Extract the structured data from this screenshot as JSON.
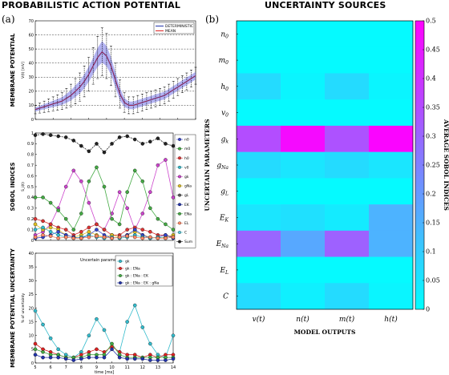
{
  "titles": {
    "left": "PROBABILISTIC ACTION POTENTIAL",
    "right": "UNCERTAINTY SOURCES",
    "panel_a": "(a)",
    "panel_b": "(b)"
  },
  "chart_data": [
    {
      "id": "membrane",
      "type": "line",
      "ylabel": "MEMBRANE POTENTIAL",
      "ylabel_small": "V(t) [mV]",
      "ylim": [
        0,
        70
      ],
      "yticks": [
        0,
        10,
        20,
        30,
        40,
        50,
        60,
        70
      ],
      "xlim": [
        5,
        14
      ],
      "grid": true,
      "legend": [
        "DETERMINISTIC",
        "MEAN"
      ],
      "x": [
        5,
        5.25,
        5.5,
        5.75,
        6,
        6.25,
        6.5,
        6.75,
        7,
        7.25,
        7.5,
        7.75,
        8,
        8.25,
        8.5,
        8.75,
        9,
        9.25,
        9.5,
        9.75,
        10,
        10.25,
        10.5,
        10.75,
        11,
        11.25,
        11.5,
        11.75,
        12,
        12.25,
        12.5,
        12.75,
        13,
        13.25,
        13.5,
        13.75,
        14
      ],
      "mean": [
        7,
        8,
        9,
        10,
        11,
        12,
        13,
        15,
        17,
        20,
        23,
        27,
        32,
        38,
        44,
        48,
        45,
        38,
        28,
        18,
        12,
        10,
        10,
        11,
        12,
        13,
        14,
        15,
        16,
        17,
        19,
        21,
        23,
        25,
        27,
        29,
        31
      ],
      "err": [
        3,
        3.5,
        4,
        4.5,
        5,
        5.5,
        6,
        7,
        8,
        9,
        10,
        11,
        12,
        13,
        15,
        17,
        16,
        14,
        12,
        10,
        7,
        6,
        6,
        6,
        6,
        6,
        6,
        6,
        6,
        6,
        6,
        6,
        6,
        6,
        6,
        6,
        6
      ]
    },
    {
      "id": "sobol",
      "type": "line",
      "ylabel": "SOBOL INDICES",
      "ylabel_small": "S_i(t)",
      "ylim": [
        0,
        1
      ],
      "yticks": [
        0,
        0.1,
        0.2,
        0.3,
        0.4,
        0.5,
        0.6,
        0.7,
        0.8,
        0.9,
        1
      ],
      "xlim": [
        5,
        14
      ],
      "x": [
        5,
        5.5,
        6,
        6.5,
        7,
        7.5,
        8,
        8.5,
        9,
        9.5,
        10,
        10.5,
        11,
        11.5,
        12,
        12.5,
        13,
        13.5,
        14
      ],
      "legend": [
        "n0",
        "m0",
        "h0",
        "v0",
        "gk",
        "gNa",
        "gL",
        "EK",
        "ENa",
        "EL",
        "C",
        "Sum"
      ],
      "series": [
        {
          "name": "gk",
          "color": "#cc44cc",
          "values": [
            0.05,
            0.08,
            0.15,
            0.3,
            0.5,
            0.65,
            0.55,
            0.35,
            0.15,
            0.1,
            0.25,
            0.45,
            0.3,
            0.1,
            0.25,
            0.45,
            0.7,
            0.75,
            0.4
          ]
        },
        {
          "name": "m0",
          "color": "#44aa44",
          "values": [
            0.4,
            0.4,
            0.35,
            0.28,
            0.2,
            0.1,
            0.25,
            0.55,
            0.68,
            0.5,
            0.2,
            0.15,
            0.45,
            0.65,
            0.55,
            0.3,
            0.2,
            0.15,
            0.1
          ]
        },
        {
          "name": "h0",
          "color": "#dd3333",
          "values": [
            0.2,
            0.18,
            0.15,
            0.12,
            0.1,
            0.05,
            0.08,
            0.12,
            0.15,
            0.1,
            0.05,
            0.05,
            0.1,
            0.12,
            0.1,
            0.08,
            0.05,
            0.05,
            0.03
          ]
        },
        {
          "name": "gNa",
          "color": "#e0c020",
          "values": [
            0.15,
            0.1,
            0.12,
            0.1,
            0.05,
            0.03,
            0.05,
            0.08,
            0.05,
            0.03,
            0.05,
            0.03,
            0.05,
            0.08,
            0.05,
            0.03,
            0.02,
            0.03,
            0.05
          ]
        },
        {
          "name": "n0",
          "color": "#3344cc",
          "values": [
            0.02,
            0.03,
            0.05,
            0.08,
            0.05,
            0.03,
            0.02,
            0.05,
            0.1,
            0.05,
            0.02,
            0.03,
            0.05,
            0.1,
            0.05,
            0.02,
            0.03,
            0.05,
            0.02
          ]
        },
        {
          "name": "v0",
          "color": "#33bbcc",
          "values": [
            0.1,
            0.12,
            0.08,
            0.05,
            0.03,
            0.02,
            0.03,
            0.05,
            0.03,
            0.02,
            0.03,
            0.02,
            0.03,
            0.05,
            0.03,
            0.02,
            0.03,
            0.02,
            0.03
          ]
        },
        {
          "name": "EL",
          "color": "#ff8866",
          "values": [
            0.03,
            0.05,
            0.04,
            0.02,
            0.03,
            0.02,
            0.02,
            0.03,
            0.04,
            0.03,
            0.02,
            0.03,
            0.04,
            0.03,
            0.02,
            0.03,
            0.02,
            0.02,
            0.03
          ]
        },
        {
          "name": "Sum",
          "color": "#222222",
          "values": [
            0.98,
            0.99,
            0.98,
            0.97,
            0.96,
            0.93,
            0.88,
            0.83,
            0.9,
            0.82,
            0.9,
            0.96,
            0.97,
            0.94,
            0.9,
            0.92,
            0.95,
            0.9,
            0.88
          ]
        }
      ]
    },
    {
      "id": "uncertainty",
      "type": "line",
      "ylabel": "MEMBRANE POTENTIAL UNCERTAINTY",
      "ylabel_small": "% of uncertainty",
      "xlabel": "time [ms]",
      "ylim": [
        0,
        40
      ],
      "yticks": [
        0,
        5,
        10,
        15,
        20,
        25,
        30,
        35,
        40
      ],
      "xlim": [
        5,
        14
      ],
      "xticks": [
        5,
        6,
        7,
        8,
        9,
        10,
        11,
        12,
        13,
        14
      ],
      "x": [
        5,
        5.5,
        6,
        6.5,
        7,
        7.5,
        8,
        8.5,
        9,
        9.5,
        10,
        10.5,
        11,
        11.5,
        12,
        12.5,
        13,
        13.5,
        14
      ],
      "annotation": "Uncertain parameters:",
      "legend": [
        "gk",
        "gk : ENa",
        "gk : ENa : EK",
        "gk : ENa : EK : gNa"
      ],
      "series": [
        {
          "name": "gk",
          "color": "#33bbcc",
          "values": [
            19,
            14,
            9,
            5,
            3,
            2,
            4,
            10,
            16,
            12,
            6,
            4,
            15,
            21,
            13,
            7,
            3,
            2,
            10
          ]
        },
        {
          "name": "gk : ENa",
          "color": "#dd2222",
          "values": [
            7,
            5,
            4,
            3,
            2,
            2,
            3,
            4,
            5,
            4,
            6,
            4,
            3,
            3,
            2,
            3,
            2,
            3,
            3
          ]
        },
        {
          "name": "gk : ENa : EK",
          "color": "#44aa44",
          "values": [
            5,
            4,
            3,
            3,
            2,
            2,
            2,
            3,
            3,
            3,
            7,
            3,
            2,
            2,
            2,
            2,
            2,
            2,
            2
          ]
        },
        {
          "name": "gk : ENa : EK : gNa",
          "color": "#2233aa",
          "values": [
            3,
            2,
            2,
            2,
            1.5,
            1,
            1.5,
            2,
            2,
            2,
            5,
            2,
            1.5,
            1.5,
            1.5,
            1,
            1,
            1,
            1.5
          ]
        }
      ]
    },
    {
      "id": "heatmap",
      "type": "heatmap",
      "xlabel": "MODEL OUTPUTS",
      "ylabel": "UNCERTAIN PARAMETERS",
      "colorbar_label": "AVERAGE SOBOL INDICES",
      "colorbar_ticks": [
        "0",
        "0.05",
        "0.1",
        "0.15",
        "0.2",
        "0.25",
        "0.3",
        "0.35",
        "0.4",
        "0.45",
        "0.5"
      ],
      "vmin": 0,
      "vmax": 0.5,
      "colors": [
        "#00ffff",
        "#ff00ff"
      ],
      "columns": [
        "v(t)",
        "n(t)",
        "m(t)",
        "h(t)"
      ],
      "rows": [
        "n0",
        "m0",
        "h0",
        "v0",
        "gk",
        "gNa",
        "gL",
        "EK",
        "ENa",
        "EL",
        "C"
      ],
      "values": [
        [
          0.01,
          0.01,
          0.01,
          0.01
        ],
        [
          0.01,
          0.01,
          0.01,
          0.01
        ],
        [
          0.07,
          0.02,
          0.07,
          0.02
        ],
        [
          0.01,
          0.01,
          0.01,
          0.01
        ],
        [
          0.35,
          0.48,
          0.34,
          0.49
        ],
        [
          0.07,
          0.05,
          0.07,
          0.05
        ],
        [
          0.01,
          0.01,
          0.01,
          0.01
        ],
        [
          0.05,
          0.06,
          0.04,
          0.15
        ],
        [
          0.3,
          0.17,
          0.31,
          0.15
        ],
        [
          0.01,
          0.01,
          0.01,
          0.01
        ],
        [
          0.07,
          0.03,
          0.07,
          0.02
        ]
      ]
    }
  ],
  "heatmap_row_labels": [
    {
      "base": "n",
      "sub": "0"
    },
    {
      "base": "m",
      "sub": "0"
    },
    {
      "base": "h",
      "sub": "0"
    },
    {
      "base": "v",
      "sub": "0"
    },
    {
      "base": "g",
      "sub": "k"
    },
    {
      "base": "g",
      "sub": "Na"
    },
    {
      "base": "g",
      "sub": "L"
    },
    {
      "base": "E",
      "sub": "K"
    },
    {
      "base": "E",
      "sub": "Na"
    },
    {
      "base": "E",
      "sub": "L"
    },
    {
      "base": "C",
      "sub": ""
    }
  ]
}
